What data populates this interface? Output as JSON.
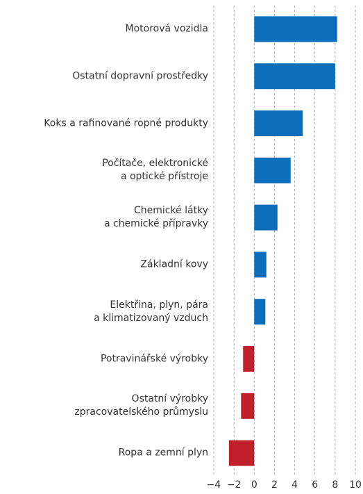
{
  "chart_data": {
    "type": "barh",
    "categories": [
      "Motorová vozidla",
      "Ostatní dopravní prostředky",
      "Koks a rafinované ropné produkty",
      "Počítače, elektronické\na optické přístroje",
      "Chemické látky\na chemické přípravky",
      "Základní kovy",
      "Elektřina, plyn, pára\na klimatizovaný vzduch",
      "Potravinářské výrobky",
      "Ostatní výrobky\nzpracovatelského průmyslu",
      "Ropa a zemní plyn"
    ],
    "values": [
      8.2,
      8.0,
      4.8,
      3.6,
      2.3,
      1.2,
      1.1,
      -1.1,
      -1.3,
      -2.5
    ],
    "colors": [
      "#0a6ebd",
      "#0a6ebd",
      "#0a6ebd",
      "#0a6ebd",
      "#0a6ebd",
      "#0a6ebd",
      "#0a6ebd",
      "#c0202a",
      "#c0202a",
      "#c0202a"
    ],
    "xlim": [
      -4,
      10
    ],
    "xticks": [
      {
        "value": -4,
        "label": "−4"
      },
      {
        "value": -2,
        "label": "−2"
      },
      0,
      2,
      4,
      6,
      8,
      10
    ],
    "grid": true
  }
}
